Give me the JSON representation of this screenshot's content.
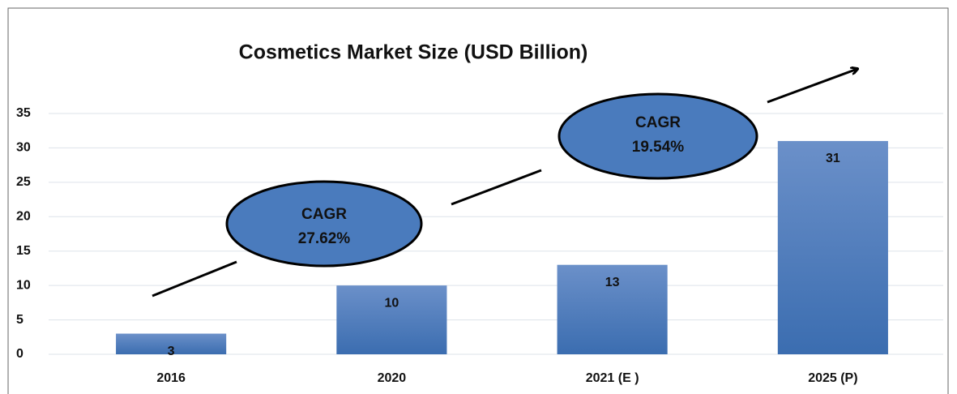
{
  "chart_data": {
    "type": "bar",
    "title": "Cosmetics Market Size (USD Billion)",
    "categories": [
      "2016",
      "2020",
      "2021 (E )",
      "2025 (P)"
    ],
    "values": [
      3,
      10,
      13,
      31
    ],
    "color": "#4a7bbd",
    "ylim": [
      0,
      35
    ],
    "yticks": [
      0,
      5,
      10,
      15,
      20,
      25,
      30,
      35
    ],
    "grid": true,
    "annotations": [
      [
        "CAGR",
        "27.62%"
      ],
      [
        "CAGR",
        "19.54%"
      ]
    ]
  }
}
